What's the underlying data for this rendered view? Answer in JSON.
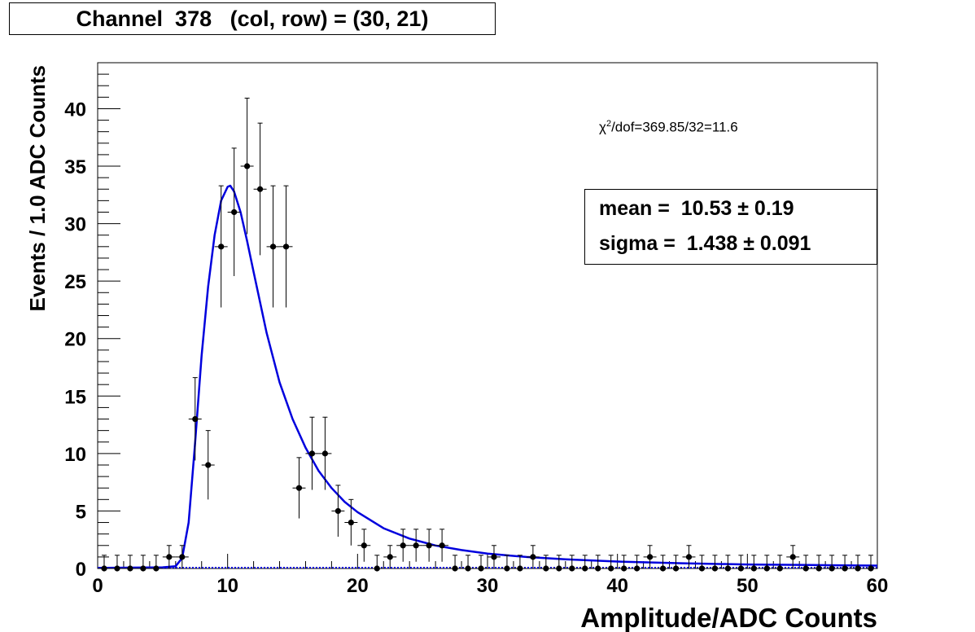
{
  "title": "Channel  378   (col, row) = (30, 21)",
  "fit_box": {
    "mean_line": "mean =  10.53 ± 0.19",
    "sigma_line": "sigma =  1.438 ± 0.091"
  },
  "chi2": {
    "symbol": "χ",
    "power": "2",
    "rest": "/dof=369.85/32=11.6"
  },
  "chart_data": {
    "type": "scatter",
    "title": "Channel  378   (col, row) = (30, 21)",
    "xlabel": "Amplitude/ADC Counts",
    "ylabel": "Events / 1.0 ADC Counts",
    "xlim": [
      0,
      60
    ],
    "ylim": [
      0,
      44
    ],
    "xticks": [
      0,
      10,
      20,
      30,
      40,
      50,
      60
    ],
    "yticks": [
      0,
      5,
      10,
      15,
      20,
      25,
      30,
      35,
      40
    ],
    "bin_width": 1.0,
    "x": [
      0.5,
      1.5,
      2.5,
      3.5,
      4.5,
      5.5,
      6.5,
      7.5,
      8.5,
      9.5,
      10.5,
      11.5,
      12.5,
      13.5,
      14.5,
      15.5,
      16.5,
      17.5,
      18.5,
      19.5,
      20.5,
      21.5,
      22.5,
      23.5,
      24.5,
      25.5,
      26.5,
      27.5,
      28.5,
      29.5,
      30.5,
      31.5,
      32.5,
      33.5,
      34.5,
      35.5,
      36.5,
      37.5,
      38.5,
      39.5,
      40.5,
      41.5,
      42.5,
      43.5,
      44.5,
      45.5,
      46.5,
      47.5,
      48.5,
      49.5,
      50.5,
      51.5,
      52.5,
      53.5,
      54.5,
      55.5,
      56.5,
      57.5,
      58.5,
      59.5
    ],
    "y": [
      0,
      0,
      0,
      0,
      0,
      1,
      1,
      13,
      9,
      28,
      31,
      35,
      33,
      28,
      28,
      7,
      10,
      10,
      5,
      4,
      2,
      0,
      1,
      2,
      2,
      2,
      2,
      0,
      0,
      0,
      1,
      0,
      0,
      1,
      0,
      0,
      0,
      0,
      0,
      0,
      0,
      0,
      1,
      0,
      0,
      1,
      0,
      0,
      0,
      0,
      0,
      0,
      0,
      1,
      0,
      0,
      0,
      0,
      0,
      0
    ],
    "fit": {
      "name": "fit",
      "color": "#0000dd",
      "x": [
        0,
        5,
        6,
        6.5,
        7,
        7.5,
        8,
        8.5,
        9,
        9.5,
        10,
        10.2,
        10.5,
        11,
        11.5,
        12,
        13,
        14,
        15,
        16,
        17,
        18,
        19,
        20,
        22,
        24,
        26,
        28,
        30,
        33,
        36,
        40,
        45,
        50,
        55,
        60
      ],
      "y": [
        0.05,
        0.1,
        0.2,
        0.9,
        4,
        11,
        18.5,
        24.5,
        29,
        32,
        33.2,
        33.3,
        32.8,
        31,
        28.5,
        25.8,
        20.5,
        16.2,
        13,
        10.5,
        8.5,
        7,
        5.8,
        4.9,
        3.5,
        2.6,
        2,
        1.6,
        1.3,
        1,
        0.8,
        0.6,
        0.45,
        0.35,
        0.3,
        0.25
      ]
    },
    "baseline_color": "#0000dd",
    "marker_color": "#000000",
    "grid": false,
    "legend": false
  }
}
